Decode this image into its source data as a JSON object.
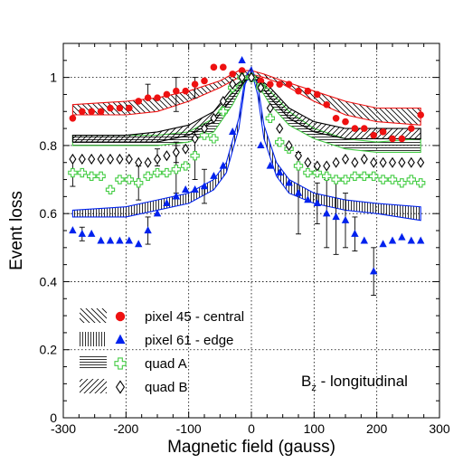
{
  "chart_data": {
    "type": "scatter",
    "title": "",
    "xlabel": "Magnetic field (gauss)",
    "ylabel": "Event loss",
    "xlim": [
      -300,
      300
    ],
    "ylim": [
      0,
      1.1
    ],
    "xticks": [
      -300,
      -200,
      -100,
      0,
      100,
      200,
      300
    ],
    "yticks": [
      0,
      0.2,
      0.4,
      0.6,
      0.8,
      1
    ],
    "grid": true,
    "legend_position": "bottom-left",
    "annotation": {
      "main": "B",
      "sub": "z",
      "rest": " - longitudinal"
    },
    "series": [
      {
        "name": "pixel 45 - central",
        "marker": "circle-filled",
        "color": "#ee1111",
        "x": [
          -285,
          -270,
          -255,
          -240,
          -225,
          -210,
          -195,
          -180,
          -165,
          -150,
          -135,
          -120,
          -105,
          -90,
          -75,
          -60,
          -45,
          -30,
          -15,
          0,
          15,
          30,
          45,
          60,
          75,
          90,
          105,
          120,
          135,
          150,
          165,
          180,
          195,
          210,
          225,
          240,
          255,
          270
        ],
        "y": [
          0.88,
          0.9,
          0.9,
          0.9,
          0.91,
          0.91,
          0.91,
          0.93,
          0.94,
          0.94,
          0.95,
          0.96,
          0.96,
          0.98,
          0.99,
          1.03,
          1.03,
          1.01,
          1.02,
          1.0,
          0.99,
          0.98,
          0.98,
          0.98,
          0.96,
          0.96,
          0.95,
          0.92,
          0.88,
          0.87,
          0.85,
          0.85,
          0.83,
          0.84,
          0.82,
          0.82,
          0.85,
          0.89
        ],
        "errors": [
          {
            "x": -165,
            "low": 0.94,
            "high": 0.98
          },
          {
            "x": -120,
            "low": 0.9,
            "high": 1.0
          },
          {
            "x": -90,
            "low": 0.94,
            "high": 1.0
          }
        ],
        "band": {
          "hatch": "diag-down",
          "x": [
            -285,
            -200,
            -150,
            -100,
            -50,
            -20,
            0,
            20,
            50,
            100,
            150,
            200,
            270
          ],
          "lower": [
            0.89,
            0.89,
            0.9,
            0.93,
            0.97,
            1.0,
            1.01,
            1.0,
            0.98,
            0.93,
            0.89,
            0.87,
            0.86
          ],
          "upper": [
            0.92,
            0.93,
            0.94,
            0.96,
            0.99,
            1.02,
            1.02,
            1.01,
            0.99,
            0.96,
            0.93,
            0.91,
            0.91
          ]
        }
      },
      {
        "name": "pixel 61 - edge",
        "marker": "triangle-filled",
        "color": "#0022ee",
        "x": [
          -285,
          -270,
          -255,
          -240,
          -225,
          -210,
          -195,
          -180,
          -165,
          -150,
          -135,
          -120,
          -105,
          -90,
          -75,
          -60,
          -45,
          -30,
          -15,
          0,
          15,
          30,
          45,
          60,
          75,
          90,
          105,
          120,
          135,
          150,
          165,
          180,
          195,
          210,
          225,
          240,
          255,
          270
        ],
        "y": [
          0.55,
          0.54,
          0.54,
          0.52,
          0.52,
          0.52,
          0.52,
          0.51,
          0.55,
          0.6,
          0.63,
          0.65,
          0.67,
          0.67,
          0.68,
          0.71,
          0.74,
          0.84,
          1.05,
          1.0,
          0.8,
          0.74,
          0.72,
          0.69,
          0.66,
          0.64,
          0.63,
          0.6,
          0.59,
          0.58,
          0.54,
          0.52,
          0.43,
          0.51,
          0.52,
          0.53,
          0.52,
          0.52
        ],
        "errors": [
          {
            "x": -270,
            "low": 0.52,
            "high": 0.56
          },
          {
            "x": -165,
            "low": 0.51,
            "high": 0.59
          },
          {
            "x": -75,
            "low": 0.63,
            "high": 0.73
          },
          {
            "x": 75,
            "low": 0.54,
            "high": 0.78
          },
          {
            "x": 105,
            "low": 0.57,
            "high": 0.69
          },
          {
            "x": 120,
            "low": 0.5,
            "high": 0.7
          },
          {
            "x": 135,
            "low": 0.48,
            "high": 0.7
          },
          {
            "x": 150,
            "low": 0.5,
            "high": 0.66
          },
          {
            "x": 165,
            "low": 0.49,
            "high": 0.59
          },
          {
            "x": 195,
            "low": 0.36,
            "high": 0.5
          }
        ],
        "band": {
          "hatch": "vertical",
          "x": [
            -285,
            -200,
            -150,
            -100,
            -60,
            -40,
            -20,
            -10,
            0,
            10,
            20,
            40,
            60,
            100,
            150,
            200,
            270
          ],
          "lower": [
            0.59,
            0.59,
            0.61,
            0.63,
            0.67,
            0.72,
            0.85,
            0.98,
            1.02,
            0.95,
            0.82,
            0.71,
            0.66,
            0.63,
            0.61,
            0.6,
            0.58
          ],
          "upper": [
            0.61,
            0.62,
            0.64,
            0.66,
            0.7,
            0.75,
            0.88,
            1.0,
            1.03,
            0.98,
            0.86,
            0.75,
            0.7,
            0.66,
            0.64,
            0.63,
            0.62
          ]
        }
      },
      {
        "name": "quad A",
        "marker": "cross-open",
        "color": "#44cc44",
        "x": [
          -285,
          -270,
          -255,
          -240,
          -225,
          -210,
          -195,
          -180,
          -165,
          -150,
          -135,
          -120,
          -105,
          -90,
          -75,
          -60,
          -45,
          -30,
          -15,
          0,
          15,
          30,
          45,
          60,
          75,
          90,
          105,
          120,
          135,
          150,
          165,
          180,
          195,
          210,
          225,
          240,
          255,
          270
        ],
        "y": [
          0.72,
          0.72,
          0.71,
          0.71,
          0.67,
          0.7,
          0.7,
          0.69,
          0.71,
          0.72,
          0.72,
          0.73,
          0.74,
          0.77,
          0.83,
          0.82,
          0.9,
          0.97,
          1.0,
          1.0,
          0.97,
          0.88,
          0.81,
          0.79,
          0.74,
          0.72,
          0.72,
          0.71,
          0.7,
          0.7,
          0.71,
          0.71,
          0.71,
          0.7,
          0.7,
          0.69,
          0.7,
          0.69
        ],
        "errors": [
          {
            "x": -285,
            "low": 0.68,
            "high": 0.76
          },
          {
            "x": -180,
            "low": 0.64,
            "high": 0.74
          },
          {
            "x": -120,
            "low": 0.66,
            "high": 0.8
          },
          {
            "x": -90,
            "low": 0.7,
            "high": 0.84
          }
        ],
        "band": {
          "hatch": "horizontal",
          "x": [
            -285,
            -200,
            -150,
            -100,
            -60,
            -30,
            -10,
            0,
            10,
            30,
            60,
            100,
            150,
            200,
            270
          ],
          "lower": [
            0.8,
            0.8,
            0.8,
            0.81,
            0.84,
            0.92,
            0.99,
            1.0,
            0.98,
            0.92,
            0.86,
            0.82,
            0.79,
            0.78,
            0.78
          ],
          "upper": [
            0.83,
            0.83,
            0.83,
            0.84,
            0.88,
            0.96,
            1.0,
            1.01,
            1.0,
            0.96,
            0.9,
            0.85,
            0.82,
            0.81,
            0.82
          ]
        }
      },
      {
        "name": "quad B",
        "marker": "diamond-open",
        "color": "#000000",
        "x": [
          -285,
          -270,
          -255,
          -240,
          -225,
          -210,
          -195,
          -180,
          -165,
          -150,
          -135,
          -120,
          -105,
          -90,
          -75,
          -60,
          -45,
          -30,
          -15,
          0,
          15,
          30,
          45,
          60,
          75,
          90,
          105,
          120,
          135,
          150,
          165,
          180,
          195,
          210,
          225,
          240,
          255,
          270
        ],
        "y": [
          0.76,
          0.76,
          0.76,
          0.76,
          0.76,
          0.76,
          0.76,
          0.75,
          0.75,
          0.76,
          0.77,
          0.78,
          0.79,
          0.82,
          0.85,
          0.88,
          0.93,
          0.98,
          1.0,
          1.0,
          0.97,
          0.91,
          0.85,
          0.8,
          0.77,
          0.75,
          0.74,
          0.74,
          0.75,
          0.76,
          0.75,
          0.76,
          0.75,
          0.75,
          0.75,
          0.75,
          0.75,
          0.75
        ],
        "errors": [
          {
            "x": -150,
            "low": 0.74,
            "high": 0.79
          },
          {
            "x": -120,
            "low": 0.75,
            "high": 0.81
          }
        ],
        "band": {
          "hatch": "diag-up",
          "x": [
            -285,
            -200,
            -150,
            -100,
            -60,
            -30,
            -10,
            0,
            10,
            30,
            60,
            100,
            150,
            200,
            270
          ],
          "lower": [
            0.81,
            0.81,
            0.81,
            0.83,
            0.87,
            0.94,
            0.99,
            1.0,
            0.99,
            0.94,
            0.88,
            0.84,
            0.82,
            0.82,
            0.82
          ],
          "upper": [
            0.83,
            0.83,
            0.84,
            0.86,
            0.9,
            0.97,
            1.0,
            1.01,
            1.0,
            0.97,
            0.91,
            0.87,
            0.85,
            0.85,
            0.85
          ]
        }
      }
    ]
  }
}
